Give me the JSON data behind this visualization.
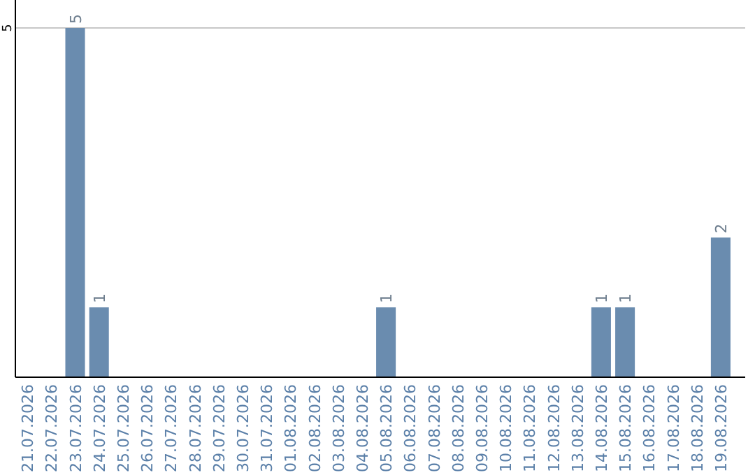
{
  "chart_data": {
    "type": "bar",
    "categories": [
      "21.07.2026",
      "22.07.2026",
      "23.07.2026",
      "24.07.2026",
      "25.07.2026",
      "26.07.2026",
      "27.07.2026",
      "28.07.2026",
      "29.07.2026",
      "30.07.2026",
      "31.07.2026",
      "01.08.2026",
      "02.08.2026",
      "03.08.2026",
      "04.08.2026",
      "05.08.2026",
      "06.08.2026",
      "07.08.2026",
      "08.08.2026",
      "09.08.2026",
      "10.08.2026",
      "11.08.2026",
      "12.08.2026",
      "13.08.2026",
      "14.08.2026",
      "15.08.2026",
      "16.08.2026",
      "17.08.2026",
      "18.08.2026",
      "19.08.2026"
    ],
    "values": [
      0,
      0,
      5,
      1,
      0,
      0,
      0,
      0,
      0,
      0,
      0,
      0,
      0,
      0,
      0,
      1,
      0,
      0,
      0,
      0,
      0,
      0,
      0,
      0,
      1,
      1,
      0,
      0,
      0,
      2
    ],
    "value_labels": [
      null,
      null,
      "5",
      "1",
      null,
      null,
      null,
      null,
      null,
      null,
      null,
      null,
      null,
      null,
      null,
      "1",
      null,
      null,
      null,
      null,
      null,
      null,
      null,
      null,
      "1",
      "1",
      null,
      null,
      null,
      "2"
    ],
    "color": "#6a8caf",
    "ylim": [
      0,
      5
    ],
    "yticks": [
      5
    ],
    "ref_lines": [
      {
        "axis": "y",
        "value": 5,
        "color": "#c8c8c8"
      }
    ]
  }
}
